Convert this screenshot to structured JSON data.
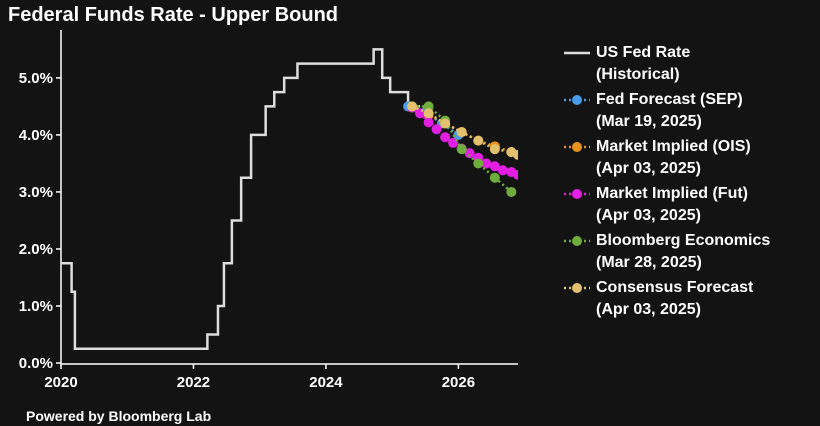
{
  "chart_data": {
    "type": "line",
    "title": "Federal Funds Rate - Upper Bound",
    "xlabel": "",
    "ylabel": "",
    "xlim": [
      2020.0,
      2026.9
    ],
    "ylim": [
      0,
      5.7
    ],
    "y_ticks": [
      0,
      1,
      2,
      3,
      4,
      5
    ],
    "y_tick_labels": [
      "0.0%",
      "1.0%",
      "2.0%",
      "3.0%",
      "4.0%",
      "5.0%"
    ],
    "x_ticks": [
      2020,
      2022,
      2024,
      2026
    ],
    "x_tick_labels": [
      "2020",
      "2022",
      "2024",
      "2026"
    ],
    "grid": false,
    "legend_position": "right",
    "series": [
      {
        "name": "US Fed Rate",
        "subtitle": "(Historical)",
        "color": "#dddddd",
        "style": "step",
        "x": [
          2020.0,
          2020.16,
          2020.21,
          2022.21,
          2022.37,
          2022.46,
          2022.58,
          2022.72,
          2022.87,
          2023.09,
          2023.22,
          2023.37,
          2023.57,
          2024.72,
          2024.85,
          2024.97,
          2025.24
        ],
        "y": [
          1.75,
          1.25,
          0.25,
          0.5,
          1.0,
          1.75,
          2.5,
          3.25,
          4.0,
          4.5,
          4.75,
          5.0,
          5.25,
          5.5,
          5.0,
          4.75,
          4.5
        ]
      },
      {
        "name": "Fed Forecast (SEP)",
        "subtitle": "(Mar 19, 2025)",
        "color": "#4a9be8",
        "style": "dotted-markers",
        "x": [
          2025.24,
          2025.5,
          2025.75,
          2026.0
        ],
        "y": [
          4.5,
          4.4,
          4.2,
          4.0
        ]
      },
      {
        "name": "Market Implied (OIS)",
        "subtitle": "(Apr 03, 2025)",
        "color": "#e8941c",
        "style": "dotted-markers",
        "x": [
          2025.3,
          2025.55,
          2025.8,
          2026.05,
          2026.3,
          2026.55,
          2026.8
        ],
        "y": [
          4.48,
          4.35,
          4.2,
          4.05,
          3.9,
          3.8,
          3.7
        ]
      },
      {
        "name": "Market Implied (Fut)",
        "subtitle": "(Apr 03, 2025)",
        "color": "#e21ee3",
        "style": "dotted-markers",
        "x": [
          2025.3,
          2025.42,
          2025.55,
          2025.67,
          2025.8,
          2025.92,
          2026.05,
          2026.17,
          2026.3,
          2026.42,
          2026.55,
          2026.67,
          2026.8,
          2026.9
        ],
        "y": [
          4.48,
          4.38,
          4.22,
          4.1,
          3.96,
          3.86,
          3.76,
          3.68,
          3.6,
          3.5,
          3.45,
          3.38,
          3.35,
          3.3
        ]
      },
      {
        "name": "Bloomberg Economics",
        "subtitle": "(Mar 28, 2025)",
        "color": "#6fad3c",
        "style": "dotted-markers",
        "x": [
          2025.3,
          2025.55,
          2025.8,
          2026.05,
          2026.3,
          2026.55,
          2026.8
        ],
        "y": [
          4.5,
          4.5,
          4.25,
          3.75,
          3.5,
          3.25,
          3.0
        ]
      },
      {
        "name": "Consensus Forecast",
        "subtitle": "(Apr 03, 2025)",
        "color": "#e3c06e",
        "style": "dotted-markers",
        "x": [
          2025.3,
          2025.55,
          2025.8,
          2026.05,
          2026.3,
          2026.55,
          2026.8,
          2026.9
        ],
        "y": [
          4.5,
          4.38,
          4.2,
          4.05,
          3.9,
          3.75,
          3.7,
          3.65
        ]
      }
    ]
  },
  "footer": {
    "text": "Powered by Bloomberg Lab"
  }
}
